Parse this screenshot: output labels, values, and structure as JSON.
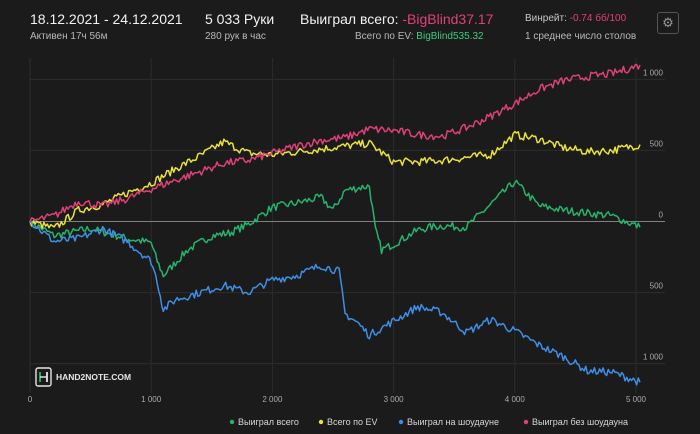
{
  "header": {
    "date_range": "18.12.2021 - 24.12.2021",
    "active": "Активен 17ч 56м",
    "hands": "5 033 Руки",
    "per_hour": "280 рук в час",
    "won_label": "Выиграл всего:",
    "won_value": "-BigBlind37.17",
    "ev_label": "Всего по EV:",
    "ev_value": "BigBlind535.32",
    "winrate_label": "Винрейт:",
    "winrate_value": "-0.74 бб/100",
    "tables": "1 среднее число столов",
    "settings_icon": "gear-icon"
  },
  "logo": "HAND2NOTE.COM",
  "colors": {
    "won": "#27b36b",
    "ev": "#e9e33a",
    "showdown": "#3e8ee6",
    "nonshowdown": "#e0407a",
    "background": "#1b1b1b"
  },
  "chart_data": {
    "type": "line",
    "xlim": [
      0,
      5033
    ],
    "ylim": [
      -1150,
      1150
    ],
    "x_ticks": [
      "0",
      "1 000",
      "2 000",
      "3 000",
      "4 000",
      "5 000"
    ],
    "y_ticks": [
      "1 000",
      "500",
      "0",
      "500",
      "1 000"
    ],
    "grid": true,
    "legend_position": "bottom-right",
    "series": [
      {
        "name": "Выиграл всего",
        "key": "won",
        "x": [
          0,
          200,
          500,
          800,
          1000,
          1050,
          1100,
          1300,
          1500,
          1650,
          1800,
          2000,
          2200,
          2400,
          2500,
          2600,
          2800,
          2850,
          2900,
          3000,
          3200,
          3300,
          3400,
          3600,
          3800,
          4000,
          4200,
          4400,
          4600,
          4800,
          5033
        ],
        "y": [
          0,
          -100,
          -50,
          -120,
          -150,
          -280,
          -380,
          -200,
          -100,
          -80,
          -20,
          100,
          130,
          170,
          80,
          220,
          250,
          -60,
          -200,
          -160,
          -60,
          -40,
          -30,
          -40,
          120,
          280,
          110,
          80,
          60,
          40,
          -40
        ]
      },
      {
        "name": "Всего по EV",
        "key": "ev",
        "x": [
          0,
          200,
          400,
          600,
          800,
          1000,
          1200,
          1400,
          1600,
          1800,
          2000,
          2200,
          2400,
          2600,
          2800,
          3000,
          3200,
          3400,
          3600,
          3800,
          4000,
          4200,
          4400,
          4600,
          4800,
          5033
        ],
        "y": [
          0,
          -50,
          80,
          120,
          200,
          270,
          370,
          460,
          560,
          480,
          470,
          490,
          510,
          530,
          550,
          420,
          420,
          430,
          450,
          470,
          610,
          580,
          520,
          490,
          500,
          540
        ]
      },
      {
        "name": "Выиграл на шоудауне",
        "key": "showdown",
        "x": [
          0,
          200,
          400,
          600,
          800,
          1000,
          1050,
          1100,
          1200,
          1400,
          1600,
          1800,
          2000,
          2200,
          2400,
          2550,
          2600,
          2700,
          2800,
          3000,
          3200,
          3400,
          3600,
          3800,
          4000,
          4200,
          4400,
          4600,
          4800,
          5033
        ],
        "y": [
          0,
          -140,
          -120,
          -50,
          -140,
          -280,
          -420,
          -620,
          -550,
          -500,
          -450,
          -500,
          -410,
          -380,
          -310,
          -350,
          -650,
          -710,
          -800,
          -700,
          -600,
          -640,
          -780,
          -690,
          -770,
          -870,
          -950,
          -1050,
          -1060,
          -1130
        ]
      },
      {
        "name": "Выиграл без шоудауна",
        "key": "nonshowdown",
        "x": [
          0,
          200,
          400,
          600,
          800,
          1000,
          1200,
          1400,
          1600,
          1800,
          2000,
          2200,
          2400,
          2600,
          2800,
          3000,
          3200,
          3400,
          3600,
          3800,
          4000,
          4200,
          4400,
          4600,
          4800,
          5033
        ],
        "y": [
          0,
          40,
          140,
          110,
          160,
          230,
          290,
          350,
          410,
          430,
          480,
          530,
          570,
          590,
          650,
          640,
          610,
          600,
          660,
          740,
          830,
          930,
          990,
          1020,
          1040,
          1100
        ]
      }
    ]
  }
}
